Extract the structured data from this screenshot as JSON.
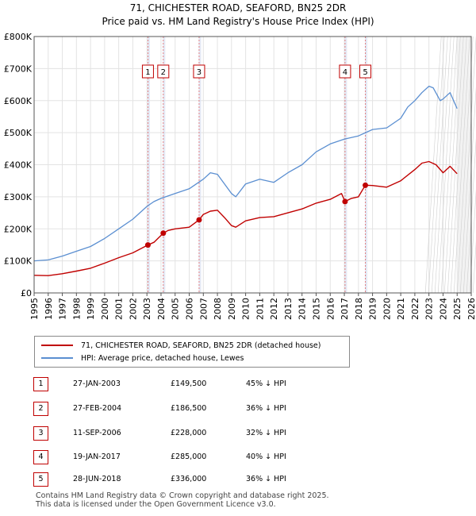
{
  "header": {
    "title_line1": "71, CHICHESTER ROAD, SEAFORD, BN25 2DR",
    "title_line2": "Price paid vs. HM Land Registry's House Price Index (HPI)"
  },
  "legend": {
    "property": "71, CHICHESTER ROAD, SEAFORD, BN25 2DR (detached house)",
    "hpi": "HPI: Average price, detached house, Lewes"
  },
  "colors": {
    "property": "#c00000",
    "hpi": "#5b8fd1",
    "sale_band": "#dde4f3",
    "sale_vline": "#e06666"
  },
  "sales": [
    {
      "num": "1",
      "date": "27-JAN-2003",
      "price": "£149,500",
      "hpi": "45% ↓ HPI"
    },
    {
      "num": "2",
      "date": "27-FEB-2004",
      "price": "£186,500",
      "hpi": "36% ↓ HPI"
    },
    {
      "num": "3",
      "date": "11-SEP-2006",
      "price": "£228,000",
      "hpi": "32% ↓ HPI"
    },
    {
      "num": "4",
      "date": "19-JAN-2017",
      "price": "£285,000",
      "hpi": "40% ↓ HPI"
    },
    {
      "num": "5",
      "date": "28-JUN-2018",
      "price": "£336,000",
      "hpi": "36% ↓ HPI"
    }
  ],
  "footer": {
    "line1": "Contains HM Land Registry data © Crown copyright and database right 2025.",
    "line2": "This data is licensed under the Open Government Licence v3.0."
  },
  "chart_data": {
    "type": "line",
    "title": "71, CHICHESTER ROAD, SEAFORD, BN25 2DR",
    "subtitle": "Price paid vs. HM Land Registry's House Price Index (HPI)",
    "xlabel": "",
    "ylabel": "",
    "xlim": [
      1995,
      2026
    ],
    "ylim": [
      0,
      800000
    ],
    "x_ticks": [
      1995,
      1996,
      1997,
      1998,
      1999,
      2000,
      2001,
      2002,
      2003,
      2004,
      2005,
      2006,
      2007,
      2008,
      2009,
      2010,
      2011,
      2012,
      2013,
      2014,
      2015,
      2016,
      2017,
      2018,
      2019,
      2020,
      2021,
      2022,
      2023,
      2024,
      2025,
      2026
    ],
    "y_ticks": [
      0,
      100000,
      200000,
      300000,
      400000,
      500000,
      600000,
      700000,
      800000
    ],
    "y_tick_labels": [
      "£0",
      "£100K",
      "£200K",
      "£300K",
      "£400K",
      "£500K",
      "£600K",
      "£700K",
      "£800K"
    ],
    "grid": true,
    "legend_position": "below",
    "series": [
      {
        "name": "71, CHICHESTER ROAD, SEAFORD, BN25 2DR (detached house)",
        "x": [
          1995,
          1996,
          1997,
          1998,
          1999,
          2000,
          2001,
          2002,
          2003.07,
          2003.5,
          2004.16,
          2004.5,
          2005,
          2006,
          2006.7,
          2007,
          2007.5,
          2008,
          2008.5,
          2009,
          2009.3,
          2010,
          2011,
          2012,
          2013,
          2014,
          2015,
          2016,
          2016.8,
          2017.05,
          2017.5,
          2018,
          2018.49,
          2019,
          2020,
          2021,
          2022,
          2022.5,
          2023,
          2023.5,
          2024,
          2024.5,
          2025
        ],
        "y": [
          55000,
          54000,
          60000,
          68000,
          77000,
          93000,
          110000,
          125000,
          149500,
          158000,
          186500,
          195000,
          200000,
          205000,
          228000,
          245000,
          255000,
          258000,
          235000,
          210000,
          205000,
          225000,
          235000,
          238000,
          250000,
          262000,
          280000,
          292000,
          310000,
          285000,
          295000,
          300000,
          336000,
          335000,
          330000,
          350000,
          385000,
          405000,
          410000,
          400000,
          375000,
          395000,
          372000
        ]
      },
      {
        "name": "HPI: Average price, detached house, Lewes",
        "x": [
          1995,
          1996,
          1997,
          1998,
          1999,
          2000,
          2001,
          2002,
          2003,
          2003.5,
          2004,
          2005,
          2006,
          2007,
          2007.5,
          2008,
          2008.5,
          2009,
          2009.3,
          2010,
          2011,
          2012,
          2013,
          2014,
          2015,
          2016,
          2017,
          2018,
          2019,
          2020,
          2021,
          2021.5,
          2022,
          2022.5,
          2023,
          2023.3,
          2023.8,
          2024,
          2024.5,
          2025
        ],
        "y": [
          100000,
          103000,
          115000,
          130000,
          145000,
          170000,
          200000,
          230000,
          270000,
          285000,
          295000,
          310000,
          325000,
          355000,
          375000,
          370000,
          340000,
          310000,
          300000,
          340000,
          355000,
          345000,
          375000,
          400000,
          440000,
          465000,
          480000,
          490000,
          510000,
          515000,
          545000,
          580000,
          600000,
          625000,
          645000,
          640000,
          600000,
          605000,
          625000,
          575000
        ]
      }
    ],
    "annotations": [
      {
        "label": "1",
        "x": 2003.07
      },
      {
        "label": "2",
        "x": 2004.16
      },
      {
        "label": "3",
        "x": 2006.7
      },
      {
        "label": "4",
        "x": 2017.05
      },
      {
        "label": "5",
        "x": 2018.49
      }
    ]
  }
}
